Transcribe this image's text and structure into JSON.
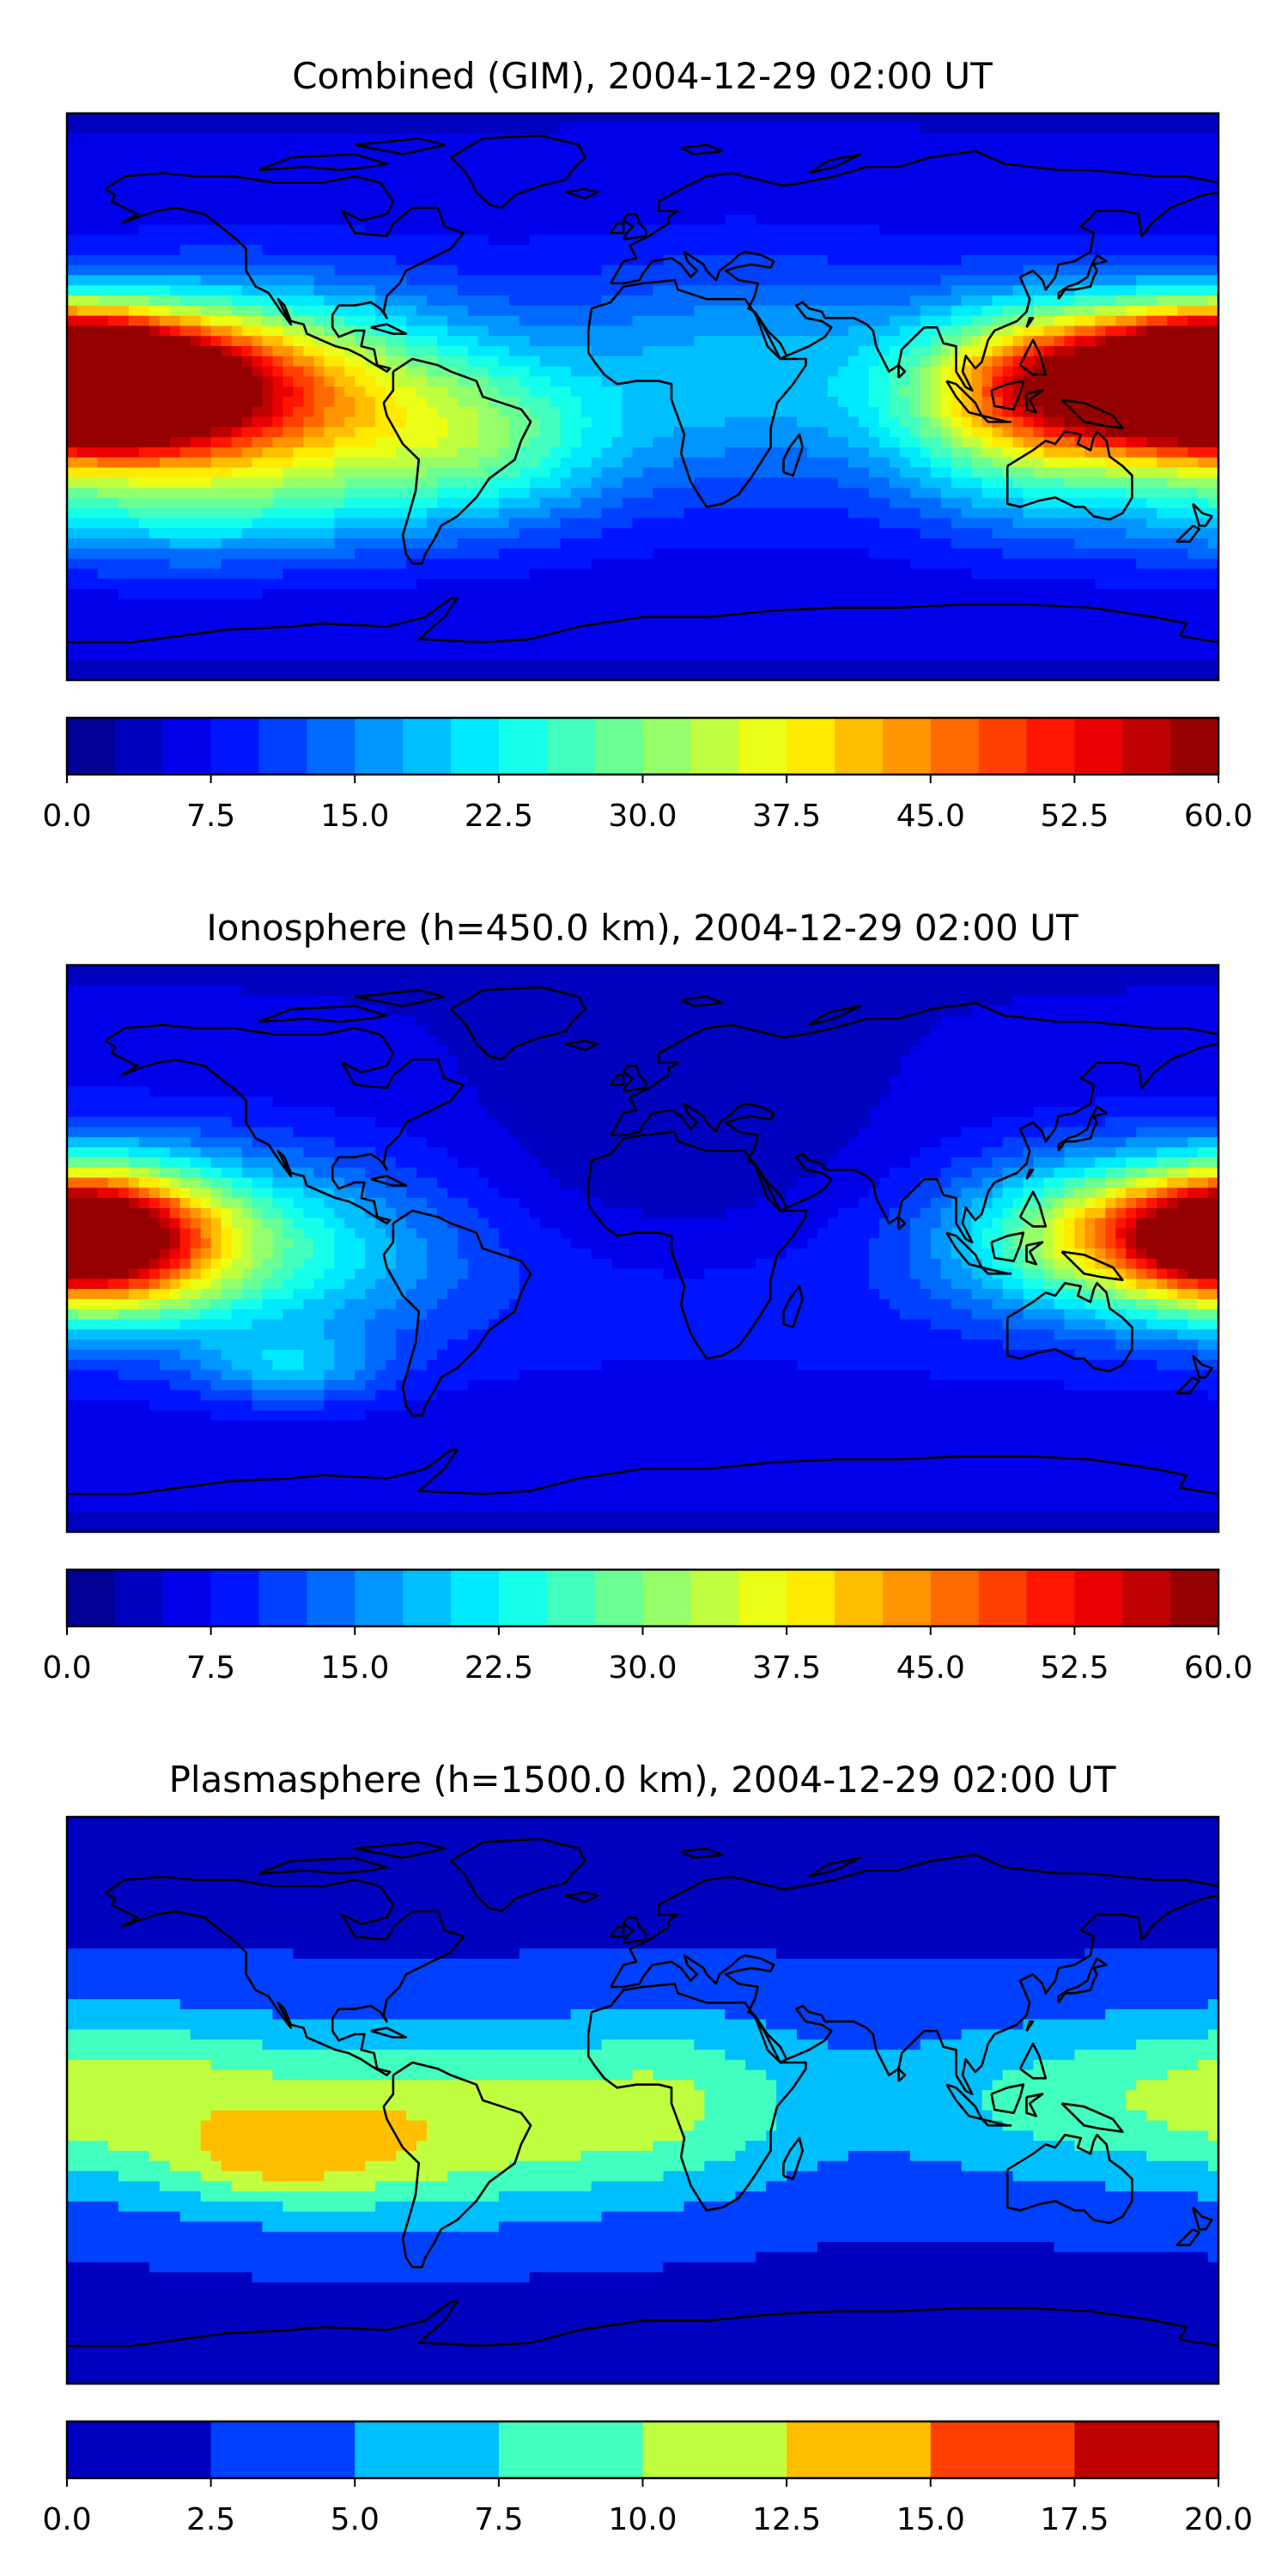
{
  "panels": [
    {
      "id": "combined",
      "title": "Combined (GIM), 2004-12-29 02:00 UT",
      "colormap": "jet",
      "vmin": 0,
      "vmax": 60,
      "levels": 24,
      "tick_labels": [
        "0.0",
        "7.5",
        "15.0",
        "22.5",
        "30.0",
        "37.5",
        "45.0",
        "52.5",
        "60.0"
      ],
      "features": [
        {
          "lon": -165,
          "lat": 3,
          "amp": 52,
          "sx": 34,
          "sy": 16
        },
        {
          "lon": -110,
          "lat": 0,
          "amp": 25,
          "sx": 40,
          "sy": 22
        },
        {
          "lon": -50,
          "lat": -15,
          "amp": 14,
          "sx": 30,
          "sy": 18
        },
        {
          "lon": 150,
          "lat": 5,
          "amp": 36,
          "sx": 36,
          "sy": 16
        },
        {
          "lon": 118,
          "lat": -5,
          "amp": 18,
          "sx": 28,
          "sy": 22
        },
        {
          "lon": 180,
          "lat": 8,
          "amp": 22,
          "sx": 20,
          "sy": 12
        },
        {
          "lon": -150,
          "lat": -35,
          "amp": 12,
          "sx": 50,
          "sy": 14
        },
        {
          "lon": 30,
          "lat": 10,
          "amp": 8,
          "sx": 40,
          "sy": 25
        }
      ]
    },
    {
      "id": "ionosphere",
      "title": "Ionosphere  (h=450.0 km), 2004-12-29 02:00 UT",
      "colormap": "jet",
      "vmin": 0,
      "vmax": 60,
      "levels": 24,
      "tick_labels": [
        "0.0",
        "7.5",
        "15.0",
        "22.5",
        "30.0",
        "37.5",
        "45.0",
        "52.5",
        "60.0"
      ],
      "features": [
        {
          "lon": -168,
          "lat": 3,
          "amp": 38,
          "sx": 26,
          "sy": 16
        },
        {
          "lon": -120,
          "lat": 0,
          "amp": 14,
          "sx": 40,
          "sy": 20
        },
        {
          "lon": 150,
          "lat": 4,
          "amp": 28,
          "sx": 34,
          "sy": 16
        },
        {
          "lon": 180,
          "lat": 6,
          "amp": 14,
          "sx": 18,
          "sy": 10
        },
        {
          "lon": -110,
          "lat": -38,
          "amp": 10,
          "sx": 20,
          "sy": 8
        },
        {
          "lon": 10,
          "lat": 20,
          "amp": -6,
          "sx": 60,
          "sy": 25
        }
      ]
    },
    {
      "id": "plasmasphere",
      "title": "Plasmasphere (h=1500.0 km), 2004-12-29 02:00 UT",
      "colormap": "jet",
      "vmin": 0,
      "vmax": 20,
      "levels": 8,
      "tick_labels": [
        "0.0",
        "2.5",
        "5.0",
        "7.5",
        "10.0",
        "12.5",
        "15.0",
        "17.5",
        "20.0"
      ],
      "features": [
        {
          "lon": -80,
          "lat": -10,
          "amp": 9,
          "sx": 55,
          "sy": 20
        },
        {
          "lon": -115,
          "lat": -20,
          "amp": 4,
          "sx": 20,
          "sy": 8
        },
        {
          "lon": 10,
          "lat": 0,
          "amp": 5,
          "sx": 30,
          "sy": 20
        },
        {
          "lon": 140,
          "lat": 0,
          "amp": 5,
          "sx": 45,
          "sy": 18
        },
        {
          "lon": -160,
          "lat": 5,
          "amp": 4,
          "sx": 30,
          "sy": 18
        }
      ]
    }
  ],
  "colors": {
    "frame": "#000000",
    "coastline": "#000000",
    "text": "#000000",
    "background": "#ffffff"
  }
}
